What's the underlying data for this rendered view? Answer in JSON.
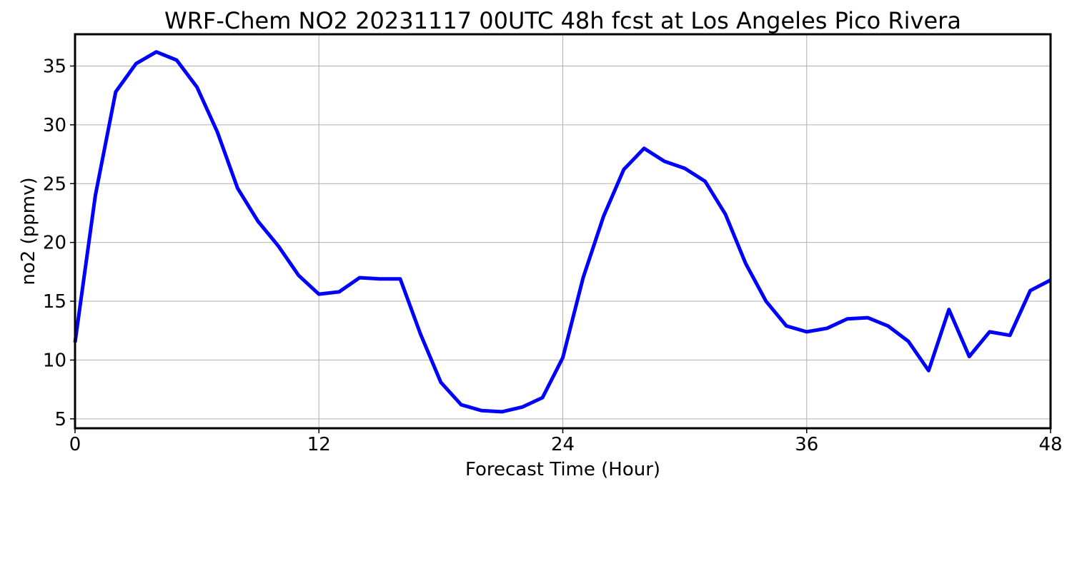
{
  "chart_data": {
    "type": "line",
    "title": "WRF-Chem NO2  20231117 00UTC 48h fcst at Los Angeles Pico Rivera",
    "xlabel": "Forecast Time (Hour)",
    "ylabel": "no2  (ppmv)",
    "xlim": [
      0,
      48
    ],
    "ylim": [
      4.2,
      37.7
    ],
    "xticks": [
      0,
      12,
      24,
      36,
      48
    ],
    "yticks": [
      5,
      10,
      15,
      20,
      25,
      30,
      35
    ],
    "grid": true,
    "series": [
      {
        "color": "#0000ff",
        "x": [
          0,
          1,
          2,
          3,
          4,
          5,
          6,
          7,
          8,
          9,
          10,
          11,
          12,
          13,
          14,
          15,
          16,
          17,
          18,
          19,
          20,
          21,
          22,
          23,
          24,
          25,
          26,
          27,
          28,
          29,
          30,
          31,
          32,
          33,
          34,
          35,
          36,
          37,
          38,
          39,
          40,
          41,
          42,
          43,
          44,
          45,
          46,
          47,
          48
        ],
        "y": [
          11.5,
          24.0,
          32.8,
          35.2,
          36.2,
          35.5,
          33.2,
          29.4,
          24.6,
          21.8,
          19.7,
          17.2,
          15.6,
          15.8,
          17.0,
          16.9,
          16.9,
          12.2,
          8.1,
          6.2,
          5.7,
          5.6,
          6.0,
          6.8,
          10.2,
          17.0,
          22.2,
          26.2,
          28.0,
          26.9,
          26.3,
          25.2,
          22.4,
          18.2,
          15.0,
          12.9,
          12.4,
          12.7,
          13.5,
          13.6,
          12.9,
          11.6,
          9.1,
          14.3,
          10.3,
          12.4,
          12.1,
          15.9,
          16.8
        ]
      }
    ]
  }
}
